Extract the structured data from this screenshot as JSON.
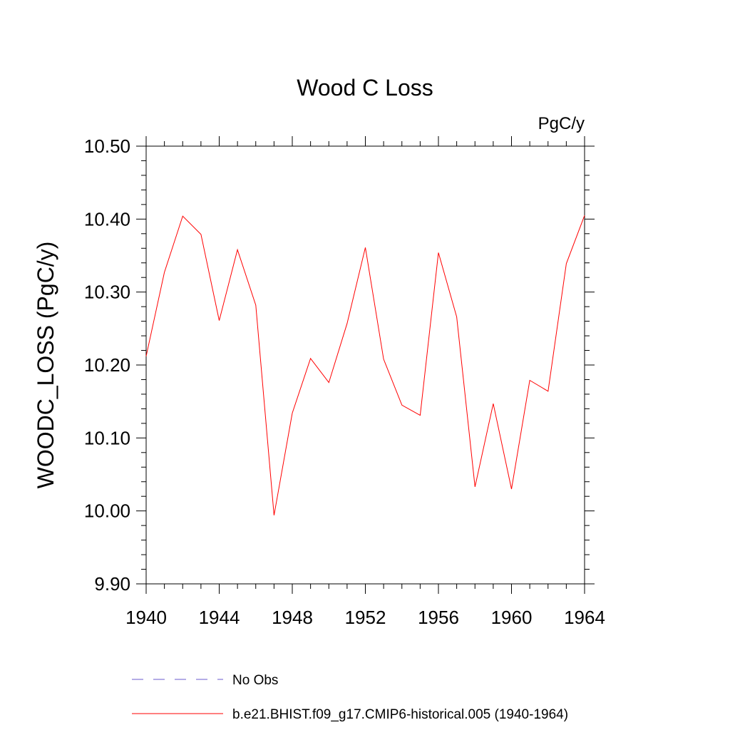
{
  "chart_data": {
    "type": "line",
    "title": "Wood C Loss",
    "units_label": "PgC/y",
    "ylabel": "WOODC_LOSS  (PgC/y)",
    "xlabel": "",
    "xlim": [
      1940,
      1964
    ],
    "ylim": [
      9.9,
      10.5
    ],
    "x_ticks": [
      1940,
      1944,
      1948,
      1952,
      1956,
      1960,
      1964
    ],
    "x_tick_labels": [
      "1940",
      "1944",
      "1948",
      "1952",
      "1956",
      "1960",
      "1964"
    ],
    "y_ticks": [
      9.9,
      10.0,
      10.1,
      10.2,
      10.3,
      10.4,
      10.5
    ],
    "y_tick_labels": [
      "9.90",
      "10.00",
      "10.10",
      "10.20",
      "10.30",
      "10.40",
      "10.50"
    ],
    "grid": false,
    "legend_position": "bottom",
    "series": [
      {
        "name": "b.e21.BHIST.f09_g17.CMIP6-historical.005 (1940-1964)",
        "color": "#ff0000",
        "style": "solid",
        "x": [
          1940,
          1941,
          1942,
          1943,
          1944,
          1945,
          1946,
          1947,
          1948,
          1949,
          1950,
          1951,
          1952,
          1953,
          1954,
          1955,
          1956,
          1957,
          1958,
          1959,
          1960,
          1961,
          1962,
          1963,
          1964
        ],
        "y": [
          10.212,
          10.327,
          10.404,
          10.379,
          10.261,
          10.358,
          10.282,
          9.994,
          10.134,
          10.209,
          10.176,
          10.257,
          10.361,
          10.208,
          10.145,
          10.131,
          10.354,
          10.266,
          10.033,
          10.147,
          10.03,
          10.179,
          10.164,
          10.339,
          10.405
        ]
      }
    ],
    "legend": [
      {
        "label": "No Obs",
        "color": "#6a5acd",
        "style": "dashed"
      },
      {
        "label": "b.e21.BHIST.f09_g17.CMIP6-historical.005 (1940-1964)",
        "color": "#ff0000",
        "style": "solid"
      }
    ]
  }
}
